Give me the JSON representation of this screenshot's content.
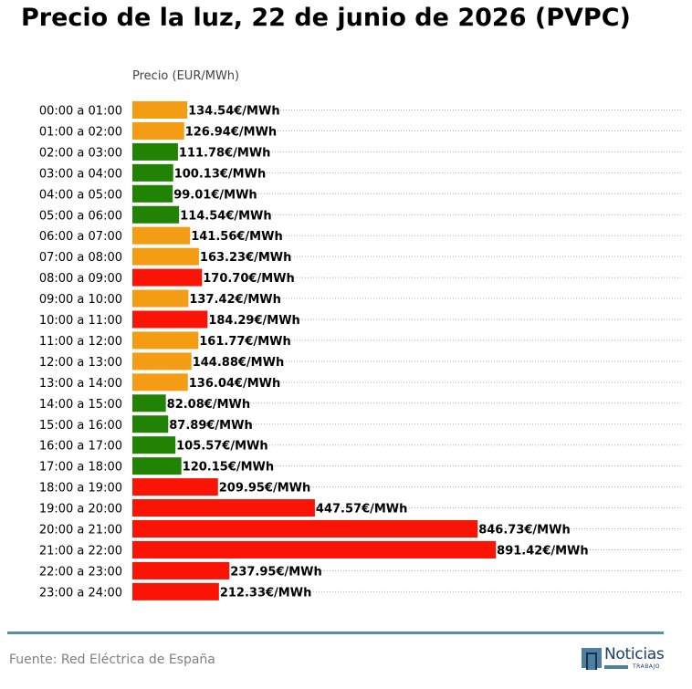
{
  "title": "Precio de la luz, 22 de junio de 2026 (PVPC)",
  "source": "Fuente: Red Eléctrica de España",
  "logo": {
    "name": "Noticias",
    "sub": "TRABAJO"
  },
  "colors": {
    "low": "#218203",
    "mid": "#f49c14",
    "high": "#fa1405",
    "grid": "#b0b0b0",
    "footer": "#5b8fa8"
  },
  "chart_data": {
    "type": "bar",
    "orientation": "horizontal",
    "title": "Precio de la luz, 22 de junio de 2026 (PVPC)",
    "xlabel": "Precio (EUR/MWh)",
    "ylabel": "",
    "value_suffix": "€/MWh",
    "xlim": [
      0,
      1350
    ],
    "grid": "horizontal dotted",
    "categories": [
      "00:00 a 01:00",
      "01:00 a 02:00",
      "02:00 a 03:00",
      "03:00 a 04:00",
      "04:00 a 05:00",
      "05:00 a 06:00",
      "06:00 a 07:00",
      "07:00 a 08:00",
      "08:00 a 09:00",
      "09:00 a 10:00",
      "10:00 a 11:00",
      "11:00 a 12:00",
      "12:00 a 13:00",
      "13:00 a 14:00",
      "14:00 a 15:00",
      "15:00 a 16:00",
      "16:00 a 17:00",
      "17:00 a 18:00",
      "18:00 a 19:00",
      "19:00 a 20:00",
      "20:00 a 21:00",
      "21:00 a 22:00",
      "22:00 a 23:00",
      "23:00 a 24:00"
    ],
    "values": [
      134.54,
      126.94,
      111.78,
      100.13,
      99.01,
      114.54,
      141.56,
      163.23,
      170.7,
      137.42,
      184.29,
      161.77,
      144.88,
      136.04,
      82.08,
      87.89,
      105.57,
      120.15,
      209.95,
      447.57,
      846.73,
      891.42,
      237.95,
      212.33
    ],
    "levels": [
      "mid",
      "mid",
      "low",
      "low",
      "low",
      "low",
      "mid",
      "mid",
      "high",
      "mid",
      "high",
      "mid",
      "mid",
      "mid",
      "low",
      "low",
      "low",
      "low",
      "high",
      "high",
      "high",
      "high",
      "high",
      "high"
    ]
  }
}
